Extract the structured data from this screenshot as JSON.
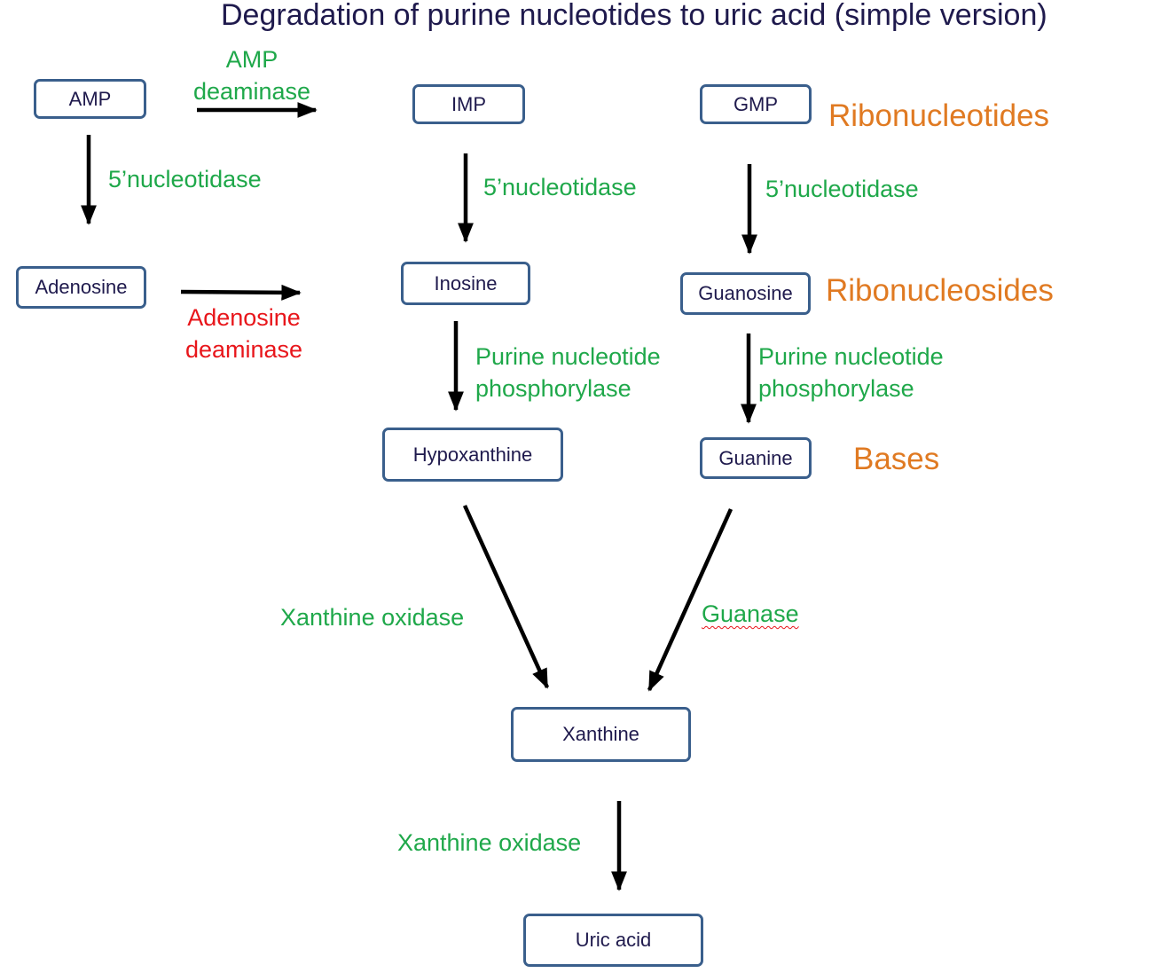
{
  "title": "Degradation of purine nucleotides to uric acid (simple version)",
  "nodes": {
    "amp": "AMP",
    "imp": "IMP",
    "gmp": "GMP",
    "adenosine": "Adenosine",
    "inosine": "Inosine",
    "guanosine": "Guanosine",
    "hypoxanthine": "Hypoxanthine",
    "guanine": "Guanine",
    "xanthine": "Xanthine",
    "uric_acid": "Uric acid"
  },
  "enzymes": {
    "amp_deaminase": [
      "AMP",
      "deaminase"
    ],
    "nucleotidase_amp": "5’nucleotidase",
    "nucleotidase_imp": "5’nucleotidase",
    "nucleotidase_gmp": "5’nucleotidase",
    "adenosine_deaminase": [
      "Adenosine",
      "deaminase"
    ],
    "pnp_inosine": [
      "Purine nucleotide",
      "phosphorylase"
    ],
    "pnp_guanosine": [
      "Purine nucleotide",
      "phosphorylase"
    ],
    "xanthine_oxidase_1": "Xanthine oxidase",
    "guanase": "Guanase",
    "xanthine_oxidase_2": "Xanthine oxidase"
  },
  "categories": {
    "ribonucleotides": "Ribonucleotides",
    "ribonucleosides": "Ribonucleosides",
    "bases": "Bases"
  },
  "colors": {
    "enzyme": "#1fa84a",
    "adenosine_deaminase": "#e8161b",
    "category": "#e07a22",
    "node_border": "#3a5f8c",
    "text": "#1f1a4d"
  }
}
